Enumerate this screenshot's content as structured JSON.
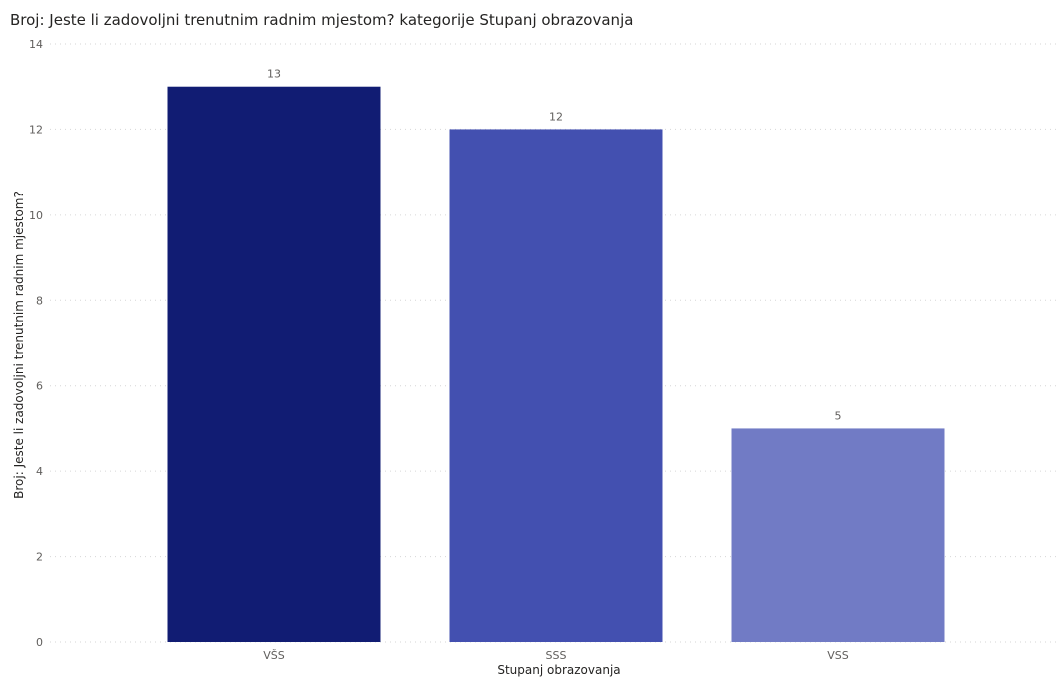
{
  "chart_data": {
    "type": "bar",
    "title": "Broj: Jeste li zadovoljni trenutnim radnim mjestom? kategorije Stupanj obrazovanja",
    "xlabel": "Stupanj obrazovanja",
    "ylabel": "Broj: Jeste li zadovoljni trenutnim radnim mjestom?",
    "categories": [
      "VŠS",
      "SSS",
      "VSS"
    ],
    "values": [
      13,
      12,
      5
    ],
    "bar_colors": [
      "#111c73",
      "#4350b0",
      "#717bc5"
    ],
    "ylim": [
      0,
      14
    ],
    "yticks": [
      0,
      2,
      4,
      6,
      8,
      10,
      12,
      14
    ],
    "grid": true,
    "grid_style": "dotted",
    "data_labels": true
  }
}
